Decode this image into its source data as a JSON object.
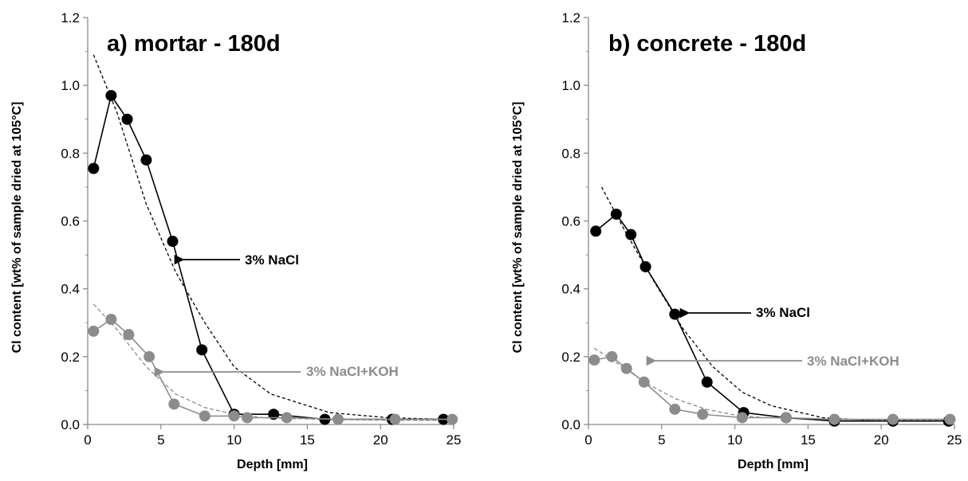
{
  "colors": {
    "nacl": "#000000",
    "naclkoh": "#8c8c8c",
    "fit_nacl": "#000000",
    "fit_naclkoh": "#8c8c8c"
  },
  "chart_data": [
    {
      "type": "line",
      "title": "a) mortar - 180d",
      "xlabel": "Depth [mm]",
      "ylabel": "Cl content  [wt% of sample dried at 105°C]",
      "xlim": [
        0,
        25
      ],
      "ylim": [
        0,
        1.2
      ],
      "xticks": [
        "0",
        "5",
        "10",
        "15",
        "20",
        "25"
      ],
      "yticks": [
        "0.0",
        "0.2",
        "0.4",
        "0.6",
        "0.8",
        "1.0",
        "1.2"
      ],
      "grid": false,
      "series": [
        {
          "name": "3% NaCl",
          "kind": "measured",
          "x": [
            0.4,
            1.6,
            2.7,
            4.0,
            5.8,
            7.8,
            10.0,
            12.7,
            16.2,
            20.8,
            24.3
          ],
          "y": [
            0.755,
            0.97,
            0.9,
            0.78,
            0.54,
            0.22,
            0.03,
            0.03,
            0.015,
            0.015,
            0.015
          ]
        },
        {
          "name": "3% NaCl+KOH",
          "kind": "measured",
          "x": [
            0.4,
            1.6,
            2.8,
            4.2,
            5.9,
            8.0,
            10.0,
            10.9,
            13.6,
            17.1,
            21.0,
            24.9
          ],
          "y": [
            0.275,
            0.31,
            0.265,
            0.2,
            0.06,
            0.025,
            0.025,
            0.02,
            0.02,
            0.015,
            0.015,
            0.015
          ]
        },
        {
          "kind": "fit",
          "x": [
            0.4,
            2.0,
            4.0,
            6.0,
            8.0,
            10.0,
            12.5,
            16.5,
            20.5,
            24.5
          ],
          "y": [
            1.09,
            0.92,
            0.65,
            0.45,
            0.3,
            0.17,
            0.09,
            0.035,
            0.02,
            0.015
          ]
        },
        {
          "kind": "fit",
          "x": [
            0.4,
            2.0,
            4.0,
            6.0,
            8.0,
            10.0,
            12.0,
            16.0,
            20.0,
            24.0
          ],
          "y": [
            0.355,
            0.28,
            0.17,
            0.09,
            0.05,
            0.03,
            0.02,
            0.015,
            0.013,
            0.012
          ]
        }
      ],
      "annotations": [
        "3% NaCl",
        "3% NaCl+KOH"
      ]
    },
    {
      "type": "line",
      "title": "b) concrete - 180d",
      "xlabel": "Depth [mm]",
      "ylabel": "Cl content  [wt% of sample dried at 105°C]",
      "xlim": [
        0,
        25
      ],
      "ylim": [
        0,
        1.2
      ],
      "xticks": [
        "0",
        "5",
        "10",
        "15",
        "20",
        "25"
      ],
      "yticks": [
        "0.0",
        "0.2",
        "0.4",
        "0.6",
        "0.8",
        "1.0",
        "1.2"
      ],
      "grid": false,
      "series": [
        {
          "name": "3% NaCl",
          "kind": "measured",
          "x": [
            0.5,
            1.9,
            2.9,
            3.9,
            5.9,
            8.1,
            10.6,
            13.5,
            16.8,
            20.8,
            24.6
          ],
          "y": [
            0.57,
            0.62,
            0.56,
            0.465,
            0.325,
            0.125,
            0.035,
            0.02,
            0.01,
            0.01,
            0.01
          ]
        },
        {
          "name": "3% NaCl+KOH",
          "kind": "measured",
          "x": [
            0.4,
            1.6,
            2.6,
            3.8,
            5.9,
            7.8,
            10.5,
            13.5,
            16.8,
            20.8,
            24.7
          ],
          "y": [
            0.19,
            0.2,
            0.165,
            0.125,
            0.045,
            0.03,
            0.02,
            0.02,
            0.015,
            0.015,
            0.015
          ]
        },
        {
          "kind": "fit",
          "x": [
            0.9,
            2.5,
            4.5,
            6.5,
            8.5,
            10.5,
            12.5,
            16.0,
            20.0,
            24.5
          ],
          "y": [
            0.7,
            0.57,
            0.42,
            0.28,
            0.17,
            0.095,
            0.055,
            0.02,
            0.01,
            0.01
          ]
        },
        {
          "kind": "fit",
          "x": [
            0.4,
            2.0,
            4.0,
            6.0,
            8.0,
            10.0,
            12.0,
            16.0,
            20.0,
            24.5
          ],
          "y": [
            0.225,
            0.18,
            0.12,
            0.075,
            0.045,
            0.028,
            0.02,
            0.015,
            0.013,
            0.012
          ]
        }
      ],
      "annotations": [
        "3% NaCl",
        "3% NaCl+KOH"
      ]
    }
  ]
}
